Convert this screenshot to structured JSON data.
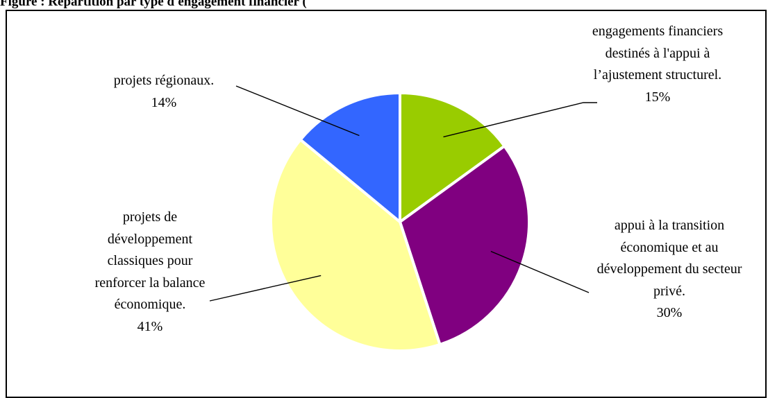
{
  "header": {
    "title": "Figure : Répartition par type d'engagement financier ("
  },
  "chart_data": {
    "type": "pie",
    "title": "",
    "start_angle_deg": 0,
    "direction": "clockwise",
    "slices": [
      {
        "label": "engagements financiers destinés à l'appui à l’ajustement structurel.",
        "value": 15,
        "value_label": "15%",
        "color": "#99cc00"
      },
      {
        "label": "appui à la transition économique et au développement du secteur privé.",
        "value": 30,
        "value_label": "30%",
        "color": "#800080"
      },
      {
        "label": "projets de développement classiques pour renforcer la balance économique.",
        "value": 41,
        "value_label": "41%",
        "color": "#ffff99"
      },
      {
        "label": "projets régionaux.",
        "value": 14,
        "value_label": "14%",
        "color": "#3366ff"
      }
    ]
  }
}
